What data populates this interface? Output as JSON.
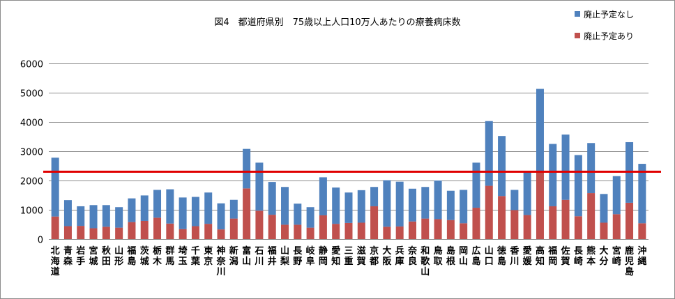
{
  "chart_data": {
    "type": "bar",
    "stacked": true,
    "title": "図4　都道府県別　75歳以上人口10万人あたりの療養病床数",
    "xlabel": "",
    "ylabel": "",
    "ylim": [
      0,
      6000
    ],
    "yticks": [
      0,
      1000,
      2000,
      3000,
      4000,
      5000,
      6000
    ],
    "legend_position": "top-right",
    "reference_line": {
      "value": 2300,
      "color": "#e00000"
    },
    "categories": [
      "北海道",
      "青森",
      "岩手",
      "宮城",
      "秋田",
      "山形",
      "福島",
      "茨城",
      "栃木",
      "群馬",
      "埼玉",
      "千葉",
      "東京",
      "神奈川",
      "新潟",
      "富山",
      "石川",
      "福井",
      "山梨",
      "長野",
      "岐阜",
      "静岡",
      "愛知",
      "三重",
      "滋賀",
      "京都",
      "大阪",
      "兵庫",
      "奈良",
      "和歌山",
      "鳥取",
      "島根",
      "岡山",
      "広島",
      "山口",
      "徳島",
      "香川",
      "愛媛",
      "高知",
      "福岡",
      "佐賀",
      "長崎",
      "熊本",
      "大分",
      "宮崎",
      "鹿児島",
      "沖縄"
    ],
    "series": [
      {
        "name": "廃止予定あり",
        "color": "#c0504d",
        "values": [
          770,
          440,
          450,
          370,
          420,
          390,
          580,
          620,
          730,
          530,
          340,
          440,
          520,
          330,
          700,
          1730,
          970,
          830,
          490,
          490,
          390,
          810,
          520,
          550,
          560,
          1120,
          420,
          430,
          600,
          700,
          680,
          650,
          540,
          1070,
          1820,
          1470,
          990,
          820,
          2320,
          1120,
          1340,
          780,
          1570,
          560,
          850,
          1240,
          540
        ]
      },
      {
        "name": "廃止予定なし",
        "color": "#4f81bd",
        "values": [
          2010,
          890,
          670,
          790,
          740,
          700,
          810,
          870,
          950,
          1170,
          1080,
          1000,
          1070,
          890,
          640,
          1350,
          1640,
          1120,
          1290,
          720,
          700,
          1300,
          1240,
          1040,
          1110,
          660,
          1590,
          1530,
          1120,
          1080,
          1320,
          1000,
          1140,
          1540,
          2210,
          2050,
          690,
          1470,
          2810,
          2130,
          2230,
          2090,
          1710,
          980,
          1300,
          2070,
          2030
        ]
      }
    ]
  },
  "legend": [
    {
      "label": "廃止予定なし",
      "color": "#4f81bd"
    },
    {
      "label": "廃止予定あり",
      "color": "#c0504d"
    }
  ]
}
